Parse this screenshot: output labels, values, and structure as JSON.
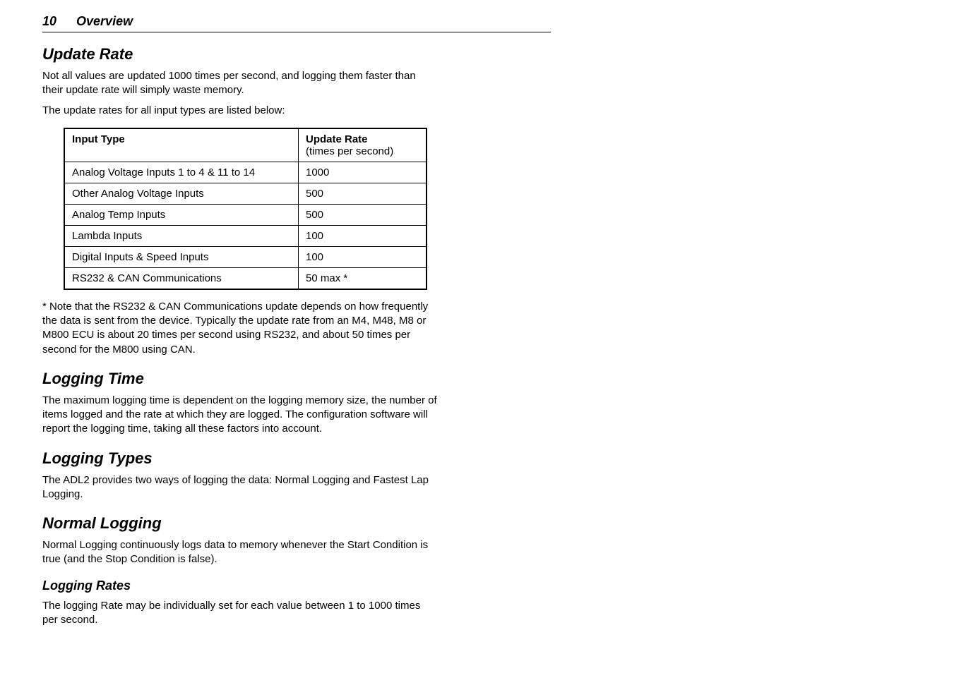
{
  "page": {
    "number": "10",
    "section": "Overview"
  },
  "sections": {
    "update_rate": {
      "title": "Update Rate",
      "p1": "Not all values are updated 1000 times per second, and logging them faster than their update rate will simply waste memory.",
      "p2": "The update rates for all input types are listed below:",
      "footnote": "* Note that the RS232 & CAN Communications update depends on how frequently the data is sent from the device. Typically the update rate from an M4, M48, M8 or M800 ECU is about 20 times per second using RS232, and about 50 times per second for the M800 using CAN."
    },
    "logging_time": {
      "title": "Logging Time",
      "p1": "The maximum logging time is dependent on the logging memory size, the number of items logged and the rate at which they are logged. The configuration software will report the logging time, taking all these factors into account."
    },
    "logging_types": {
      "title": "Logging Types",
      "p1": "The ADL2 provides two ways of logging the data: Normal Logging and Fastest Lap Logging."
    },
    "normal_logging": {
      "title": "Normal Logging",
      "p1": "Normal Logging continuously logs data to memory whenever the Start Condition is true (and the Stop Condition is false)."
    },
    "logging_rates": {
      "title": "Logging Rates",
      "p1": "The logging Rate may be individually set for each value between 1 to 1000 times per second."
    }
  },
  "table": {
    "header_col1": "Input Type",
    "header_col2_bold": "Update Rate",
    "header_col2_sub": "(times per second)",
    "rows": [
      {
        "input": "Analog Voltage Inputs 1 to 4 & 11 to 14",
        "rate": "1000"
      },
      {
        "input": "Other Analog Voltage Inputs",
        "rate": "500"
      },
      {
        "input": "Analog Temp Inputs",
        "rate": "500"
      },
      {
        "input": "Lambda Inputs",
        "rate": "100"
      },
      {
        "input": "Digital Inputs & Speed Inputs",
        "rate": "100"
      },
      {
        "input": "RS232 & CAN Communications",
        "rate": "50 max *"
      }
    ]
  }
}
